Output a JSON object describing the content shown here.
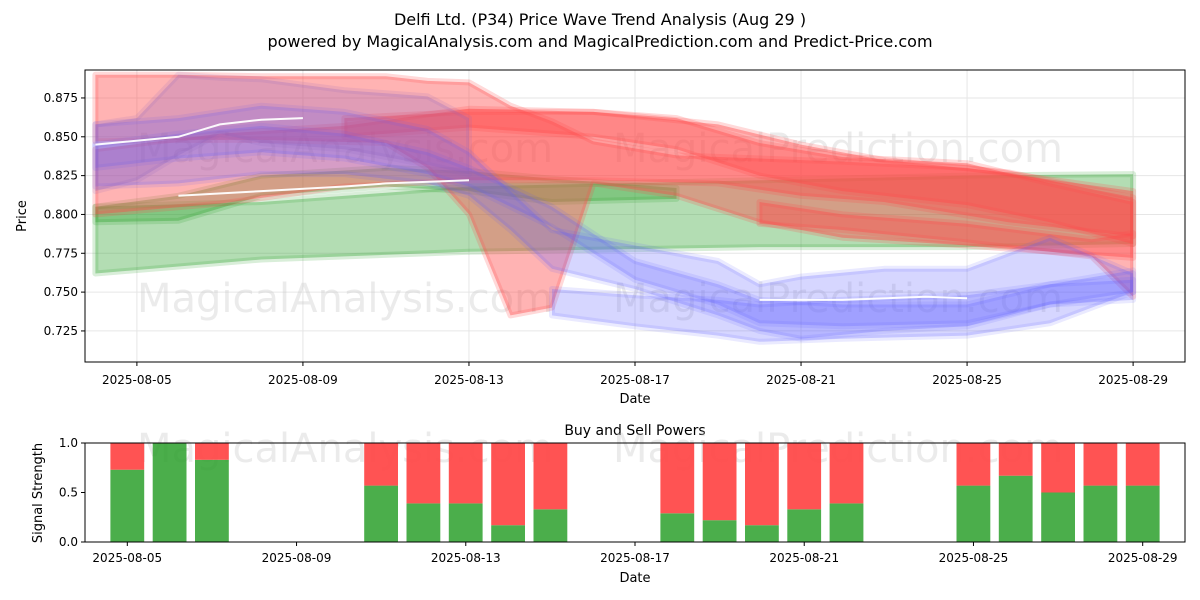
{
  "title": "Delfi Ltd. (P34) Price Wave Trend Analysis (Aug 29 )",
  "subtitle": "powered by MagicalAnalysis.com and MagicalPrediction.com and Predict-Price.com",
  "watermarks": [
    "MagicalAnalysis.com",
    "MagicalPrediction.com",
    "MagicalAnalysis.com",
    "MagicalPrediction.com",
    "MagicalAnalysis.com",
    "MagicalPrediction.com"
  ],
  "colors": {
    "green": "#2ca02c",
    "red": "#ff4a4a",
    "blue": "#5a5aff",
    "purple": "#9060c0",
    "white": "#ffffff",
    "grid": "#e6e6e6"
  },
  "chart_data": [
    {
      "type": "line",
      "xlabel": "Date",
      "ylabel": "Price",
      "ylim": [
        0.705,
        0.893
      ],
      "xlim": [
        "2025-08-03 18:00",
        "2025-08-30 06:00"
      ],
      "yticks": [
        "0.725",
        "0.750",
        "0.775",
        "0.800",
        "0.825",
        "0.850",
        "0.875"
      ],
      "xticks": [
        "2025-08-05",
        "2025-08-09",
        "2025-08-13",
        "2025-08-17",
        "2025-08-21",
        "2025-08-25",
        "2025-08-29"
      ],
      "grid": true,
      "series": [
        {
          "color": "green",
          "role": "band",
          "x": [
            "2025-08-04",
            "2025-08-08",
            "2025-08-13",
            "2025-08-20",
            "2025-08-25",
            "2025-08-29"
          ],
          "upper": [
            0.805,
            0.808,
            0.818,
            0.822,
            0.825,
            0.826
          ],
          "lower": [
            0.762,
            0.771,
            0.776,
            0.779,
            0.779,
            0.781
          ]
        },
        {
          "color": "green",
          "role": "band",
          "x": [
            "2025-08-04",
            "2025-08-06",
            "2025-08-08",
            "2025-08-11",
            "2025-08-13",
            "2025-08-15",
            "2025-08-18"
          ],
          "upper": [
            0.805,
            0.812,
            0.825,
            0.83,
            0.828,
            0.823,
            0.817
          ],
          "lower": [
            0.795,
            0.796,
            0.812,
            0.818,
            0.815,
            0.808,
            0.81
          ]
        },
        {
          "color": "red",
          "role": "band",
          "x": [
            "2025-08-04",
            "2025-08-06",
            "2025-08-08",
            "2025-08-11",
            "2025-08-12",
            "2025-08-13",
            "2025-08-14",
            "2025-08-15",
            "2025-08-16",
            "2025-08-18",
            "2025-08-20",
            "2025-08-22",
            "2025-08-25",
            "2025-08-29"
          ],
          "upper": [
            0.89,
            0.89,
            0.889,
            0.889,
            0.886,
            0.885,
            0.87,
            0.86,
            0.847,
            0.838,
            0.836,
            0.834,
            0.83,
            0.815
          ],
          "lower": [
            0.847,
            0.848,
            0.848,
            0.846,
            0.83,
            0.8,
            0.735,
            0.74,
            0.82,
            0.812,
            0.795,
            0.785,
            0.78,
            0.772
          ]
        },
        {
          "color": "red",
          "role": "band",
          "x": [
            "2025-08-04",
            "2025-08-07",
            "2025-08-10",
            "2025-08-13",
            "2025-08-16",
            "2025-08-19",
            "2025-08-21",
            "2025-08-23",
            "2025-08-26",
            "2025-08-29"
          ],
          "upper": [
            0.842,
            0.852,
            0.857,
            0.868,
            0.866,
            0.858,
            0.845,
            0.835,
            0.827,
            0.811
          ],
          "lower": [
            0.8,
            0.807,
            0.818,
            0.822,
            0.822,
            0.82,
            0.812,
            0.808,
            0.795,
            0.786
          ]
        },
        {
          "color": "red",
          "role": "band",
          "x": [
            "2025-08-10",
            "2025-08-13",
            "2025-08-16",
            "2025-08-18",
            "2025-08-20",
            "2025-08-22",
            "2025-08-25",
            "2025-08-27",
            "2025-08-29"
          ],
          "upper": [
            0.862,
            0.866,
            0.866,
            0.862,
            0.846,
            0.837,
            0.833,
            0.82,
            0.808
          ],
          "lower": [
            0.85,
            0.856,
            0.85,
            0.842,
            0.825,
            0.815,
            0.806,
            0.795,
            0.781
          ]
        },
        {
          "color": "red",
          "role": "band",
          "x": [
            "2025-08-20",
            "2025-08-22",
            "2025-08-25",
            "2025-08-28",
            "2025-08-29"
          ],
          "upper": [
            0.808,
            0.8,
            0.794,
            0.784,
            0.788
          ],
          "lower": [
            0.794,
            0.79,
            0.782,
            0.773,
            0.747
          ]
        },
        {
          "color": "blue",
          "role": "band",
          "x": [
            "2025-08-04",
            "2025-08-06",
            "2025-08-08",
            "2025-08-10",
            "2025-08-12",
            "2025-08-13",
            "2025-08-14",
            "2025-08-15",
            "2025-08-17",
            "2025-08-19",
            "2025-08-20",
            "2025-08-21",
            "2025-08-23",
            "2025-08-25",
            "2025-08-27",
            "2025-08-29"
          ],
          "upper": [
            0.858,
            0.862,
            0.87,
            0.866,
            0.855,
            0.84,
            0.815,
            0.79,
            0.78,
            0.77,
            0.755,
            0.76,
            0.765,
            0.765,
            0.785,
            0.762
          ],
          "lower": [
            0.818,
            0.82,
            0.826,
            0.826,
            0.82,
            0.812,
            0.79,
            0.765,
            0.752,
            0.735,
            0.725,
            0.72,
            0.725,
            0.728,
            0.742,
            0.745
          ]
        },
        {
          "color": "blue",
          "role": "band",
          "x": [
            "2025-08-15",
            "2025-08-17",
            "2025-08-19",
            "2025-08-20",
            "2025-08-22",
            "2025-08-25",
            "2025-08-27",
            "2025-08-29"
          ],
          "upper": [
            0.752,
            0.748,
            0.745,
            0.742,
            0.745,
            0.748,
            0.755,
            0.758
          ],
          "lower": [
            0.735,
            0.728,
            0.722,
            0.718,
            0.72,
            0.722,
            0.73,
            0.75
          ]
        },
        {
          "color": "blue",
          "role": "band",
          "x": [
            "2025-08-04",
            "2025-08-06",
            "2025-08-08",
            "2025-08-10",
            "2025-08-12",
            "2025-08-13",
            "2025-08-15",
            "2025-08-17",
            "2025-08-19",
            "2025-08-20",
            "2025-08-22",
            "2025-08-25",
            "2025-08-27",
            "2025-08-29"
          ],
          "upper": [
            0.845,
            0.852,
            0.857,
            0.852,
            0.84,
            0.83,
            0.805,
            0.77,
            0.755,
            0.745,
            0.742,
            0.742,
            0.755,
            0.764
          ],
          "lower": [
            0.83,
            0.836,
            0.84,
            0.836,
            0.826,
            0.818,
            0.792,
            0.758,
            0.742,
            0.73,
            0.728,
            0.73,
            0.742,
            0.75
          ]
        },
        {
          "color": "purple",
          "role": "band",
          "x": [
            "2025-08-04",
            "2025-08-05",
            "2025-08-06",
            "2025-08-07",
            "2025-08-08",
            "2025-08-10",
            "2025-08-12",
            "2025-08-13"
          ],
          "upper": [
            0.858,
            0.862,
            0.89,
            0.888,
            0.887,
            0.88,
            0.876,
            0.862
          ],
          "lower": [
            0.815,
            0.822,
            0.838,
            0.852,
            0.846,
            0.842,
            0.832,
            0.826
          ]
        },
        {
          "color": "white",
          "role": "line",
          "x": [
            "2025-08-04",
            "2025-08-06",
            "2025-08-07",
            "2025-08-08",
            "2025-08-09"
          ],
          "values": [
            0.845,
            0.85,
            0.858,
            0.861,
            0.862
          ]
        },
        {
          "color": "white",
          "role": "line",
          "x": [
            "2025-08-06",
            "2025-08-08",
            "2025-08-10",
            "2025-08-11",
            "2025-08-13"
          ],
          "values": [
            0.812,
            0.815,
            0.818,
            0.82,
            0.822
          ]
        },
        {
          "color": "white",
          "role": "line",
          "x": [
            "2025-08-20",
            "2025-08-22",
            "2025-08-24",
            "2025-08-25"
          ],
          "values": [
            0.745,
            0.745,
            0.747,
            0.746
          ]
        }
      ]
    },
    {
      "type": "bar",
      "title": "Buy and Sell Powers",
      "xlabel": "Date",
      "ylabel": "Signal Strength",
      "ylim": [
        0,
        1.0
      ],
      "yticks": [
        "0.0",
        "0.5",
        "1.0"
      ],
      "xticks": [
        "2025-08-05",
        "2025-08-09",
        "2025-08-13",
        "2025-08-17",
        "2025-08-21",
        "2025-08-25",
        "2025-08-29"
      ],
      "x": [
        "2025-08-05",
        "2025-08-06",
        "2025-08-07",
        "2025-08-11",
        "2025-08-12",
        "2025-08-13",
        "2025-08-14",
        "2025-08-15",
        "2025-08-18",
        "2025-08-19",
        "2025-08-20",
        "2025-08-21",
        "2025-08-22",
        "2025-08-25",
        "2025-08-26",
        "2025-08-27",
        "2025-08-28",
        "2025-08-29"
      ],
      "series": [
        {
          "color": "green",
          "values": [
            0.73,
            1.0,
            0.83,
            0.57,
            0.39,
            0.39,
            0.17,
            0.33,
            0.29,
            0.22,
            0.17,
            0.33,
            0.39,
            0.57,
            0.67,
            0.5,
            0.57,
            0.57
          ]
        },
        {
          "color": "red",
          "values": [
            0.27,
            0.0,
            0.17,
            0.43,
            0.61,
            0.61,
            0.83,
            0.67,
            0.71,
            0.78,
            0.83,
            0.67,
            0.61,
            0.43,
            0.33,
            0.5,
            0.43,
            0.43
          ]
        }
      ]
    }
  ]
}
